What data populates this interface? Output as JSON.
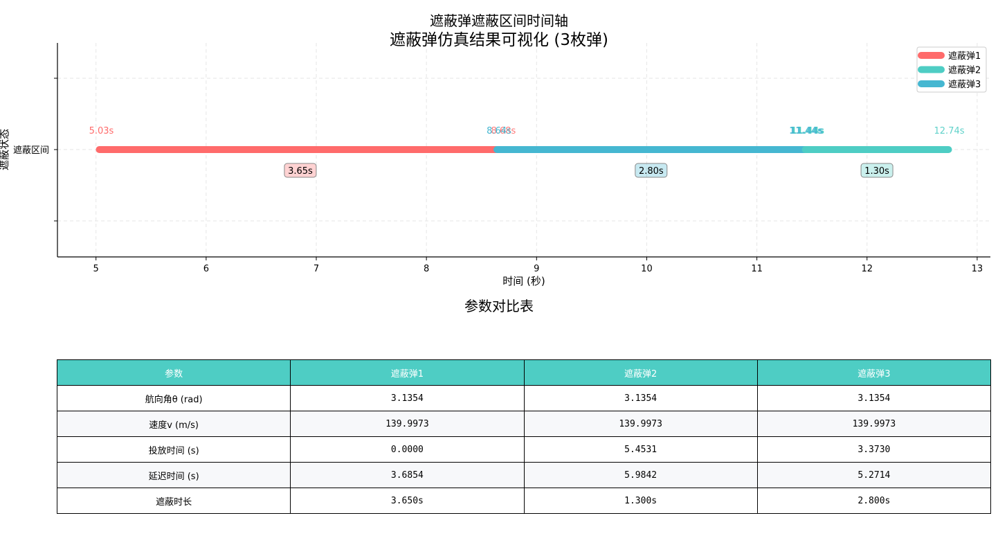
{
  "figure": {
    "suptitle": "遮蔽弹仿真结果可视化 (3枚弹)"
  },
  "chart_data": {
    "type": "timeline",
    "title": "遮蔽弹遮蔽区间时间轴",
    "xlabel": "时间 (秒)",
    "ylabel": "遮蔽状态",
    "y_category": "遮蔽区间",
    "xlim": [
      4.65,
      13.12
    ],
    "x_ticks": [
      5,
      6,
      7,
      8,
      9,
      10,
      11,
      12,
      13
    ],
    "grid": true,
    "legend_position": "top-right",
    "series": [
      {
        "name": "遮蔽弹1",
        "color": "#FF6B6B",
        "start": 5.03,
        "end": 8.68,
        "start_label": "5.03s",
        "end_label": "8.68s",
        "duration_label": "3.65s"
      },
      {
        "name": "遮蔽弹2",
        "color": "#4ECDC4",
        "start": 11.44,
        "end": 12.74,
        "start_label": "11.44s",
        "end_label": "12.74s",
        "duration_label": "1.30s"
      },
      {
        "name": "遮蔽弹3",
        "color": "#45B7D1",
        "start": 8.64,
        "end": 11.44,
        "start_label": "8.64s",
        "end_label": "11.44s",
        "duration_label": "2.80s"
      }
    ]
  },
  "table": {
    "title": "参数对比表",
    "headers": [
      "参数",
      "遮蔽弹1",
      "遮蔽弹2",
      "遮蔽弹3"
    ],
    "rows": [
      [
        "航向角θ (rad)",
        "3.1354",
        "3.1354",
        "3.1354"
      ],
      [
        "速度v (m/s)",
        "139.9973",
        "139.9973",
        "139.9973"
      ],
      [
        "投放时间 (s)",
        "0.0000",
        "5.4531",
        "3.3730"
      ],
      [
        "延迟时间 (s)",
        "3.6854",
        "5.9842",
        "5.2714"
      ],
      [
        "遮蔽时长",
        "3.650s",
        "1.300s",
        "2.800s"
      ]
    ]
  }
}
